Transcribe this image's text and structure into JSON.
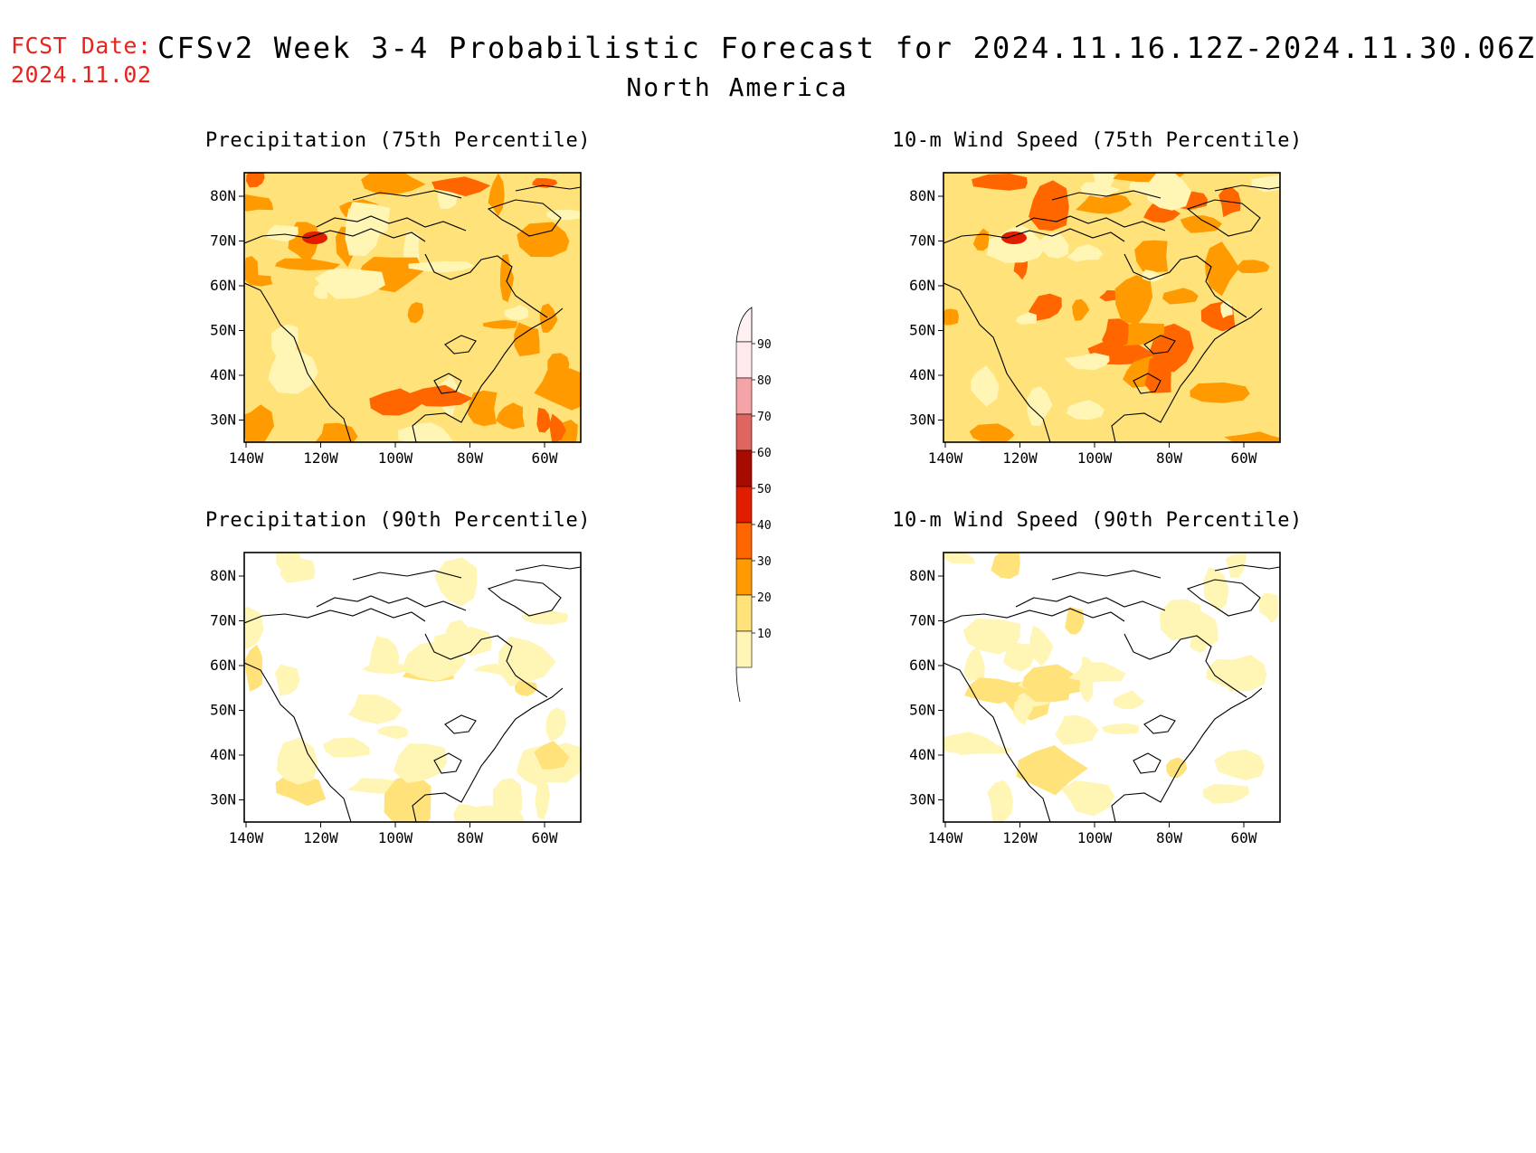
{
  "header": {
    "fcst_label": "FCST Date:",
    "fcst_date": "2024.11.02",
    "title": "CFSv2 Week 3-4 Probabilistic Forecast for 2024.11.16.12Z-2024.11.30.06Z",
    "region": "North America"
  },
  "map_axes": {
    "lat_labels": [
      "80N",
      "70N",
      "60N",
      "50N",
      "40N",
      "30N"
    ],
    "lon_labels": [
      "140W",
      "120W",
      "100W",
      "80W",
      "60W"
    ]
  },
  "panels": [
    {
      "title": "Precipitation (75th Percentile)",
      "base_level": 2
    },
    {
      "title": "10-m Wind Speed (75th Percentile)",
      "base_level": 2
    },
    {
      "title": "Precipitation (90th Percentile)",
      "base_level": 0
    },
    {
      "title": "10-m Wind Speed (90th Percentile)",
      "base_level": 0
    }
  ],
  "colorbar": {
    "labels": [
      "90",
      "80",
      "70",
      "60",
      "50",
      "40",
      "30",
      "20",
      "10"
    ],
    "colors": [
      "#ffe9ec",
      "#f4a3a6",
      "#df6560",
      "#a70b00",
      "#e11d00",
      "#ff6600",
      "#ff9a00",
      "#ffe27a",
      "#fff5b4"
    ]
  },
  "palette": {
    "level_0": "#ffffff",
    "level_1": "#fff5b4",
    "level_2": "#ffe27a",
    "level_3": "#ff9a00",
    "level_4": "#ff6600",
    "level_5": "#e11d00",
    "title_red": "#e8231d"
  }
}
